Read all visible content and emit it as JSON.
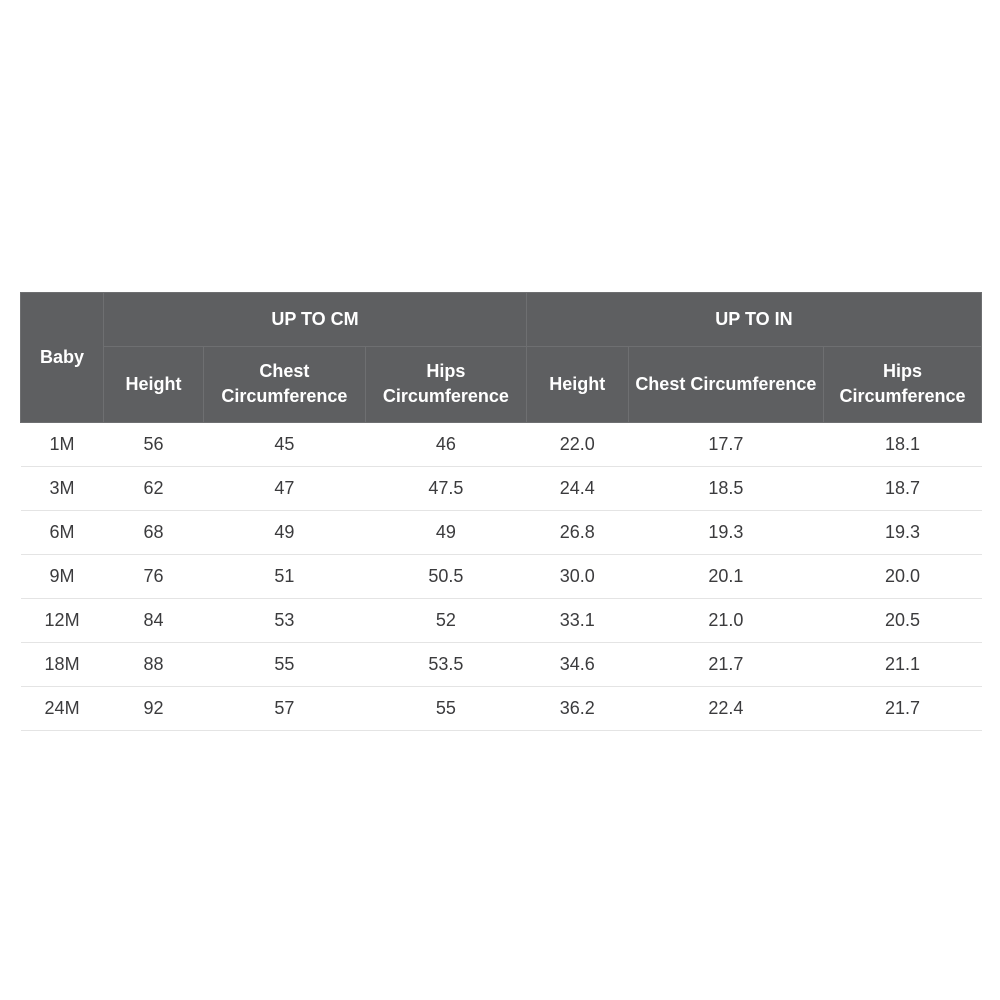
{
  "table": {
    "type": "table",
    "background_color": "#ffffff",
    "header_bg": "#5e5f61",
    "header_text_color": "#ffffff",
    "header_border_color": "#6e6f71",
    "body_text_color": "#3b3b3d",
    "row_border_color": "#e4e4e4",
    "font_size_header": 18,
    "font_size_body": 18,
    "group_headers": {
      "cm": "UP TO CM",
      "in": "UP TO IN"
    },
    "columns": {
      "size": "Baby",
      "height_cm": "Height",
      "chest_cm": "Chest Circumference",
      "hips_cm": "Hips Circumference",
      "height_in": "Height",
      "chest_in": "Chest Circumference",
      "hips_in": "Hips Circumference"
    },
    "rows": [
      {
        "size": "1M",
        "height_cm": "56",
        "chest_cm": "45",
        "hips_cm": "46",
        "height_in": "22.0",
        "chest_in": "17.7",
        "hips_in": "18.1"
      },
      {
        "size": "3M",
        "height_cm": "62",
        "chest_cm": "47",
        "hips_cm": "47.5",
        "height_in": "24.4",
        "chest_in": "18.5",
        "hips_in": "18.7"
      },
      {
        "size": "6M",
        "height_cm": "68",
        "chest_cm": "49",
        "hips_cm": "49",
        "height_in": "26.8",
        "chest_in": "19.3",
        "hips_in": "19.3"
      },
      {
        "size": "9M",
        "height_cm": "76",
        "chest_cm": "51",
        "hips_cm": "50.5",
        "height_in": "30.0",
        "chest_in": "20.1",
        "hips_in": "20.0"
      },
      {
        "size": "12M",
        "height_cm": "84",
        "chest_cm": "53",
        "hips_cm": "52",
        "height_in": "33.1",
        "chest_in": "21.0",
        "hips_in": "20.5"
      },
      {
        "size": "18M",
        "height_cm": "88",
        "chest_cm": "55",
        "hips_cm": "53.5",
        "height_in": "34.6",
        "chest_in": "21.7",
        "hips_in": "21.1"
      },
      {
        "size": "24M",
        "height_cm": "92",
        "chest_cm": "57",
        "hips_cm": "55",
        "height_in": "36.2",
        "chest_in": "22.4",
        "hips_in": "21.7"
      }
    ]
  }
}
